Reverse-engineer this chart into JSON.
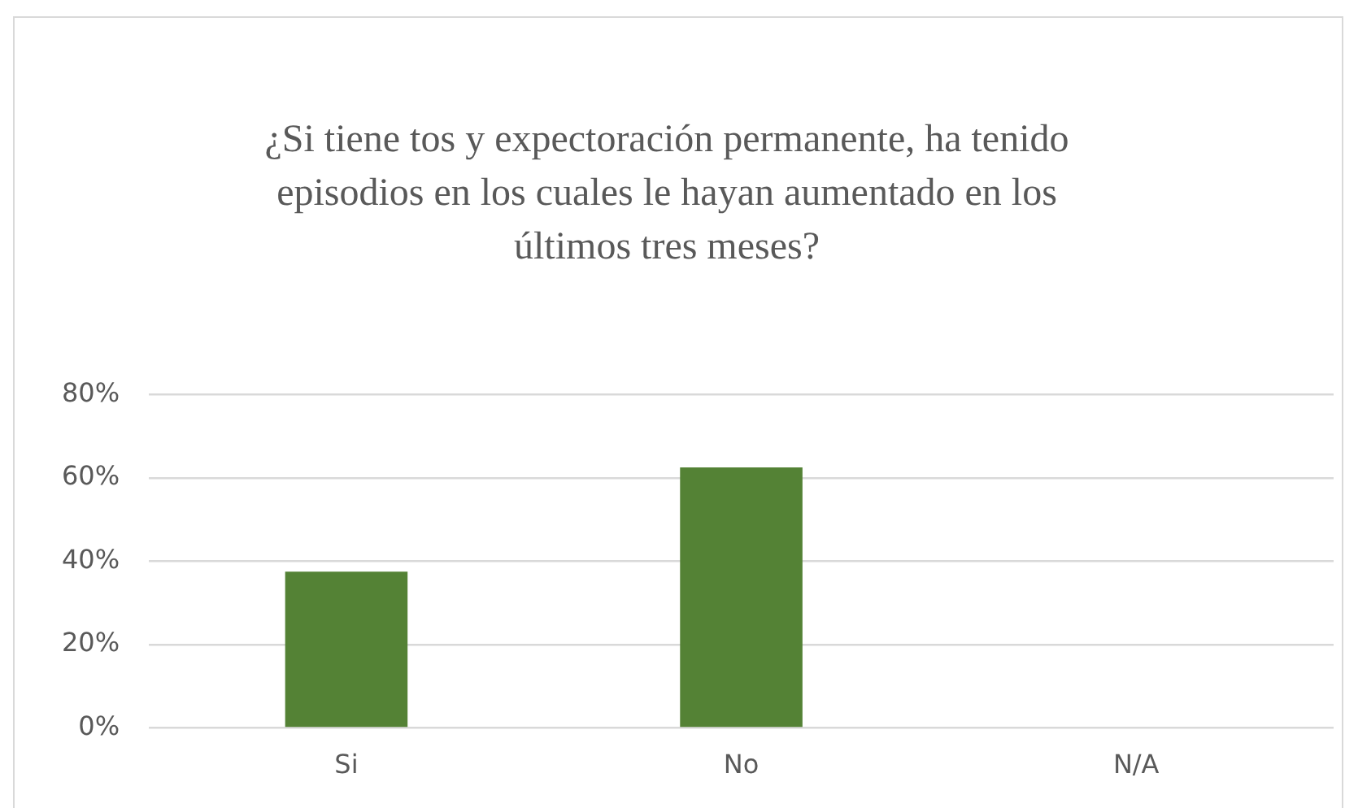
{
  "chart_data": {
    "type": "bar",
    "title": "¿Si tiene tos y expectoración permanente, ha tenido episodios en los cuales le hayan aumentado en los últimos tres meses?",
    "categories": [
      "Si",
      "No",
      "N/A"
    ],
    "values": [
      37.5,
      62.5,
      0
    ],
    "color": "#548235",
    "ylim": [
      0,
      80
    ],
    "yticks": [
      {
        "value": 0,
        "label": "0%"
      },
      {
        "value": 20,
        "label": "20%"
      },
      {
        "value": 40,
        "label": "40%"
      },
      {
        "value": 60,
        "label": "60%"
      },
      {
        "value": 80,
        "label": "80%"
      }
    ],
    "grid": "y",
    "legend": false
  }
}
